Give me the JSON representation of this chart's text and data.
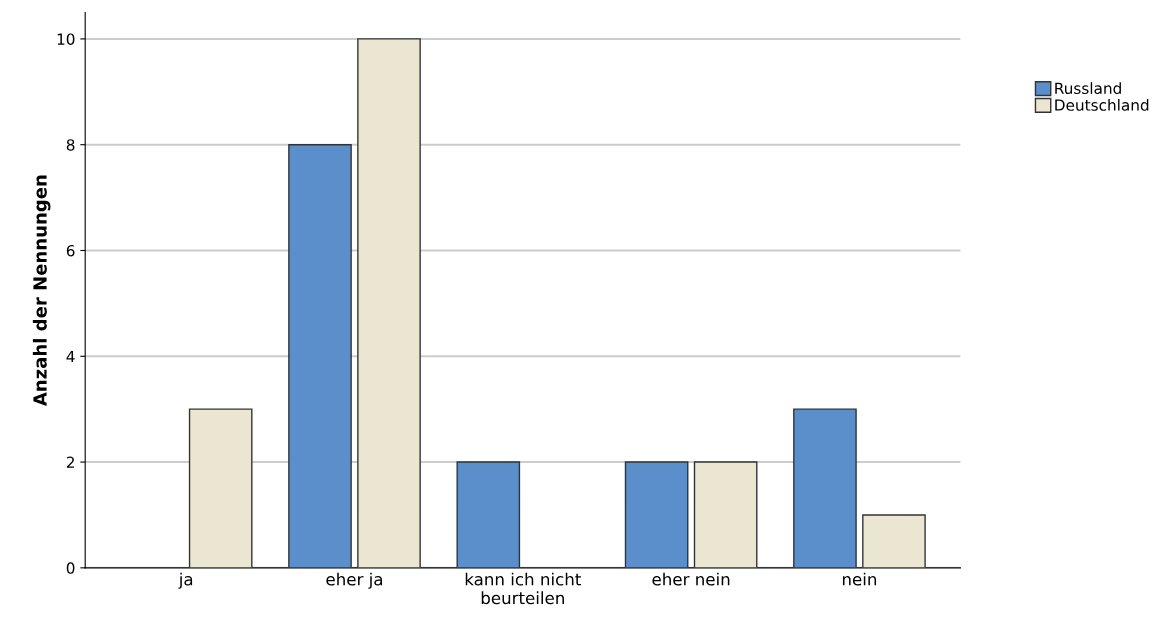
{
  "chart_data": {
    "type": "bar",
    "ylabel": "Anzahl der Nennungen",
    "categories": [
      "ja",
      "eher ja",
      "kann ich nicht\nbeurteilen",
      "eher nein",
      "nein"
    ],
    "series": [
      {
        "name": "Russland",
        "color": "#5b8fcb",
        "values": [
          0,
          8,
          2,
          2,
          3
        ]
      },
      {
        "name": "Deutschland",
        "color": "#ebe6d2",
        "values": [
          3,
          10,
          0,
          2,
          1
        ]
      }
    ],
    "ylim": [
      0,
      10.5
    ],
    "yticks": [
      0,
      2,
      4,
      6,
      8,
      10
    ],
    "grid": "y",
    "legend": "right"
  }
}
